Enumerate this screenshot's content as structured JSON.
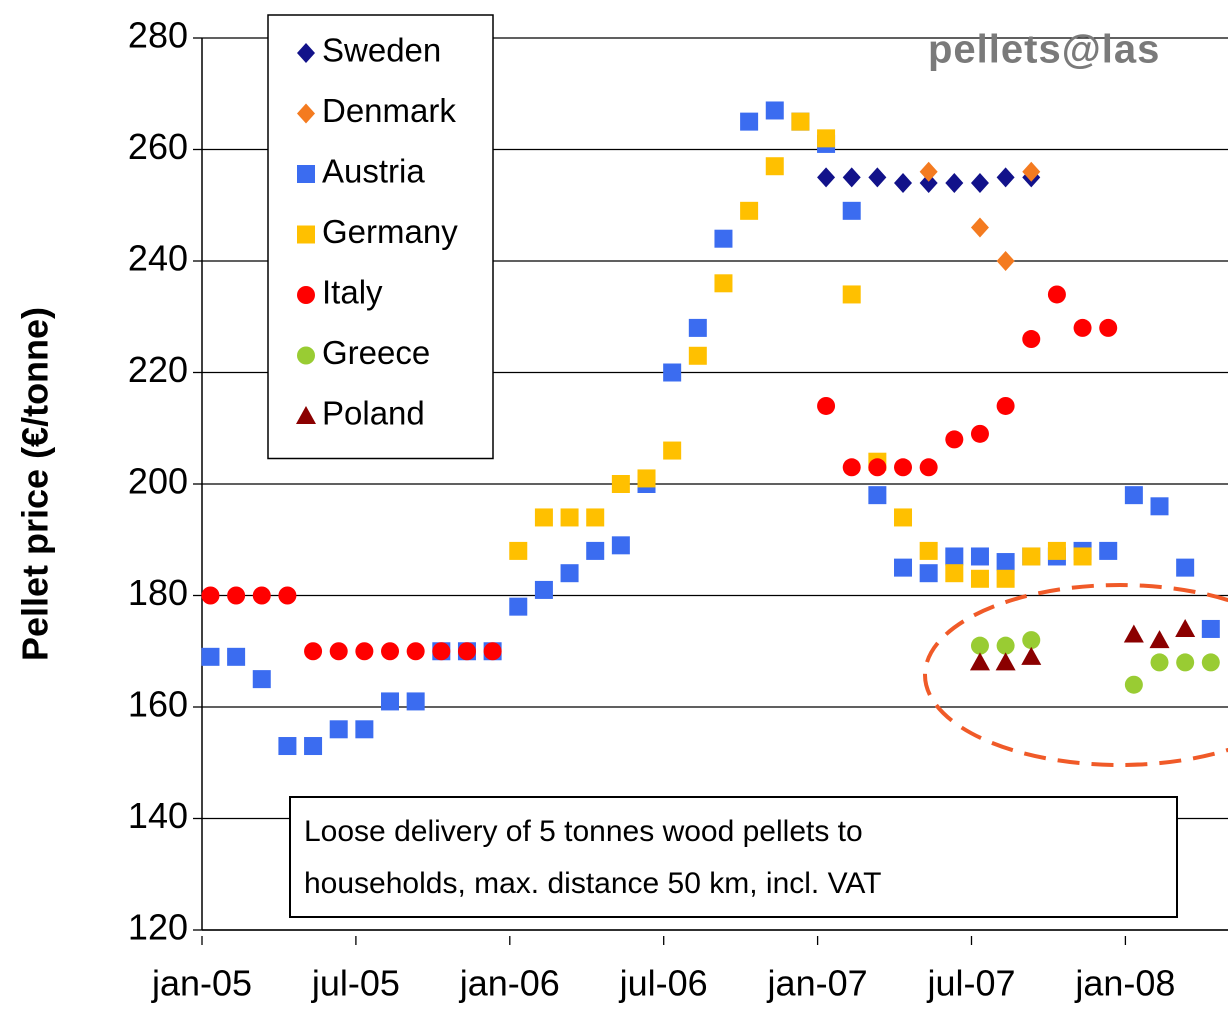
{
  "chart_data": {
    "type": "scatter",
    "y_label": "Pellet price (€/tonne)",
    "annotation": [
      "Loose delivery of 5 tonnes wood pellets to",
      "households, max. distance 50 km, incl. VAT"
    ],
    "logo": "pellets@las",
    "x": [
      "2005-01",
      "2005-02",
      "2005-03",
      "2005-04",
      "2005-05",
      "2005-06",
      "2005-07",
      "2005-08",
      "2005-09",
      "2005-10",
      "2005-11",
      "2005-12",
      "2006-01",
      "2006-02",
      "2006-03",
      "2006-04",
      "2006-05",
      "2006-06",
      "2006-07",
      "2006-08",
      "2006-09",
      "2006-10",
      "2006-11",
      "2006-12",
      "2007-01",
      "2007-02",
      "2007-03",
      "2007-04",
      "2007-05",
      "2007-06",
      "2007-07",
      "2007-08",
      "2007-09",
      "2007-10",
      "2007-11",
      "2007-12",
      "2008-01",
      "2008-02",
      "2008-03",
      "2008-04"
    ],
    "xlim": [
      "2005-01",
      "2008-05"
    ],
    "xticks": [
      {
        "value": "2005-01",
        "label": "jan-05"
      },
      {
        "value": "2005-07",
        "label": "jul-05"
      },
      {
        "value": "2006-01",
        "label": "jan-06"
      },
      {
        "value": "2006-07",
        "label": "jul-06"
      },
      {
        "value": "2007-01",
        "label": "jan-07"
      },
      {
        "value": "2007-07",
        "label": "jul-07"
      },
      {
        "value": "2008-01",
        "label": "jan-08"
      }
    ],
    "ylim": [
      120,
      280
    ],
    "yticks": [
      120,
      140,
      160,
      180,
      200,
      220,
      240,
      260,
      280
    ],
    "grid": true,
    "legend": "top-left",
    "series": [
      {
        "name": "Sweden",
        "color": "#12128a",
        "marker": "diamond",
        "values": [
          null,
          null,
          null,
          null,
          null,
          null,
          null,
          null,
          null,
          null,
          null,
          null,
          null,
          null,
          null,
          null,
          null,
          null,
          null,
          null,
          null,
          null,
          null,
          null,
          255,
          255,
          255,
          254,
          254,
          254,
          254,
          255,
          255,
          null,
          null,
          null,
          null,
          null,
          null,
          null
        ]
      },
      {
        "name": "Denmark",
        "color": "#f47b20",
        "marker": "diamond",
        "values": [
          null,
          null,
          null,
          null,
          null,
          null,
          null,
          null,
          null,
          null,
          null,
          null,
          null,
          null,
          null,
          null,
          null,
          null,
          null,
          null,
          null,
          null,
          null,
          null,
          null,
          null,
          null,
          null,
          256,
          null,
          246,
          240,
          256,
          null,
          null,
          null,
          null,
          null,
          null,
          null
        ]
      },
      {
        "name": "Austria",
        "color": "#3b6cf0",
        "marker": "square",
        "values": [
          169,
          169,
          165,
          153,
          153,
          156,
          156,
          161,
          161,
          170,
          170,
          170,
          178,
          181,
          184,
          188,
          189,
          200,
          220,
          228,
          244,
          265,
          267,
          265,
          261,
          249,
          198,
          185,
          184,
          187,
          187,
          186,
          187,
          187,
          188,
          188,
          198,
          196,
          185,
          174
        ]
      },
      {
        "name": "Germany",
        "color": "#ffc000",
        "marker": "square",
        "values": [
          null,
          null,
          null,
          null,
          null,
          null,
          null,
          null,
          null,
          null,
          null,
          null,
          188,
          194,
          194,
          194,
          200,
          201,
          206,
          223,
          236,
          249,
          257,
          265,
          262,
          234,
          204,
          194,
          188,
          184,
          183,
          183,
          187,
          188,
          187,
          null,
          null,
          null,
          null,
          null
        ]
      },
      {
        "name": "Italy",
        "color": "#ff0000",
        "marker": "circle",
        "values": [
          180,
          180,
          180,
          180,
          170,
          170,
          170,
          170,
          170,
          170,
          170,
          170,
          null,
          null,
          null,
          null,
          null,
          null,
          null,
          null,
          null,
          null,
          null,
          null,
          214,
          203,
          203,
          203,
          203,
          208,
          209,
          214,
          226,
          234,
          228,
          228,
          null,
          null,
          null,
          null
        ]
      },
      {
        "name": "Greece",
        "color": "#99cc33",
        "marker": "circle",
        "values": [
          null,
          null,
          null,
          null,
          null,
          null,
          null,
          null,
          null,
          null,
          null,
          null,
          null,
          null,
          null,
          null,
          null,
          null,
          null,
          null,
          null,
          null,
          null,
          null,
          null,
          null,
          null,
          null,
          null,
          null,
          171,
          171,
          172,
          null,
          null,
          null,
          164,
          168,
          168,
          168
        ]
      },
      {
        "name": "Poland",
        "color": "#8b0000",
        "marker": "triangle",
        "values": [
          null,
          null,
          null,
          null,
          null,
          null,
          null,
          null,
          null,
          null,
          null,
          null,
          null,
          null,
          null,
          null,
          null,
          null,
          null,
          null,
          null,
          null,
          null,
          null,
          null,
          null,
          null,
          null,
          null,
          null,
          168,
          168,
          169,
          null,
          null,
          null,
          173,
          172,
          174,
          null
        ]
      }
    ]
  }
}
